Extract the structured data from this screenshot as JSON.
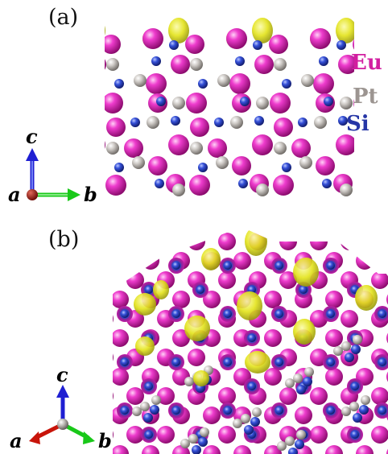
{
  "panels": [
    {
      "label": "(a)"
    },
    {
      "label": "(b)"
    }
  ],
  "legend": [
    {
      "element": "Eu",
      "color": "#d21ea0"
    },
    {
      "element": "Pt",
      "color": "#9c9591"
    },
    {
      "element": "Si",
      "color": "#2636a6"
    }
  ],
  "axes_a": {
    "vertical": "c",
    "horizontal": "b",
    "out_of_plane": "a"
  },
  "axes_b": {
    "vertical": "c",
    "left": "a",
    "right": "b"
  },
  "colors": {
    "eu_atom": "#e21cb6",
    "pt_atom": "#c9c6c2",
    "si_atom": "#2f46c9",
    "isosurface": "#dede10",
    "axis_blue": "#1f1fd2",
    "axis_green": "#19c819",
    "axis_red": "#c8140a"
  }
}
